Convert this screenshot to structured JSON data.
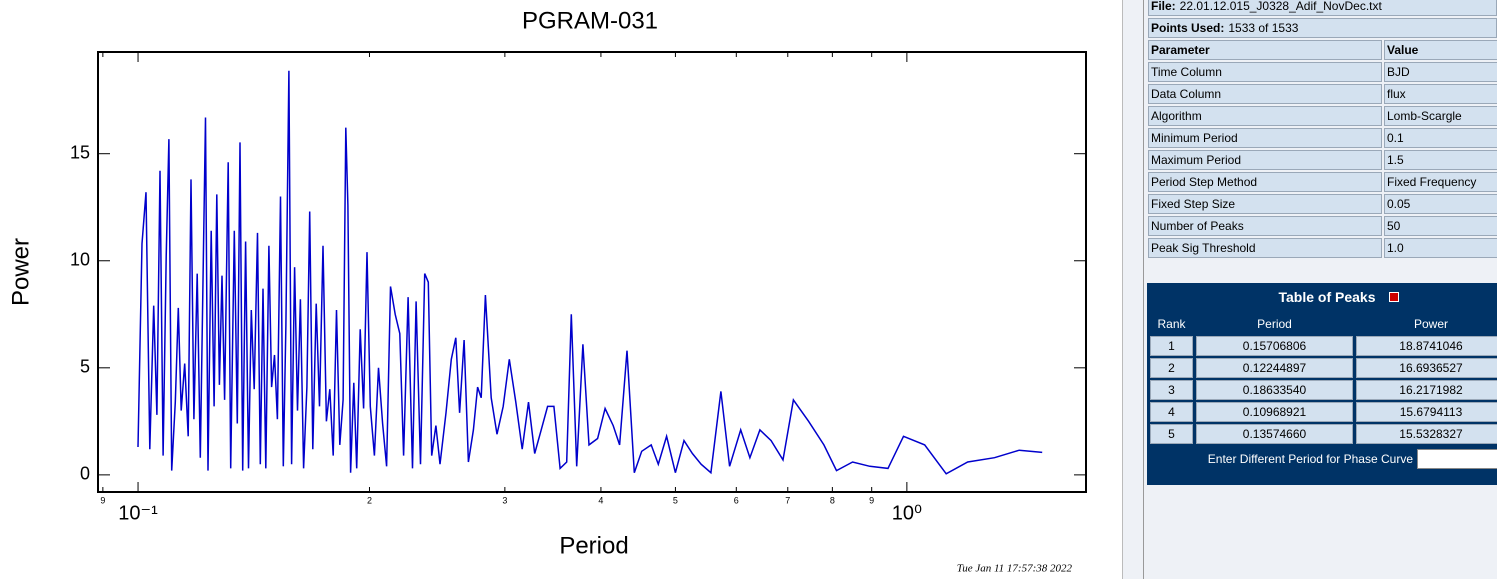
{
  "chart_data": {
    "type": "line",
    "title": "PGRAM-031",
    "xlabel": "Period",
    "ylabel": "Power",
    "xscale": "log",
    "color": "#0000cc",
    "xlim": [
      0.0887,
      1.71
    ],
    "ylim": [
      -0.8,
      19.75
    ],
    "xticks": [
      {
        "value": 0.09,
        "label": "9"
      },
      {
        "value": 0.1,
        "label": "10⁻¹"
      },
      {
        "value": 0.2,
        "label": "2"
      },
      {
        "value": 0.3,
        "label": "3"
      },
      {
        "value": 0.4,
        "label": "4"
      },
      {
        "value": 0.5,
        "label": "5"
      },
      {
        "value": 0.6,
        "label": "6"
      },
      {
        "value": 0.7,
        "label": "7"
      },
      {
        "value": 0.8,
        "label": "8"
      },
      {
        "value": 0.9,
        "label": "9"
      },
      {
        "value": 1,
        "label": "10⁰"
      }
    ],
    "yticks": [
      0,
      5,
      10,
      15
    ],
    "x": [
      0.1,
      0.1012,
      0.1024,
      0.1036,
      0.1048,
      0.1058,
      0.1068,
      0.1078,
      0.1088,
      0.1097,
      0.1106,
      0.1118,
      0.1128,
      0.1138,
      0.115,
      0.1162,
      0.1172,
      0.1182,
      0.1194,
      0.1205,
      0.1224,
      0.1233,
      0.1245,
      0.1256,
      0.1266,
      0.1276,
      0.1286,
      0.1296,
      0.131,
      0.132,
      0.1334,
      0.1346,
      0.1357,
      0.1368,
      0.138,
      0.1392,
      0.1404,
      0.1416,
      0.143,
      0.1442,
      0.1454,
      0.1466,
      0.148,
      0.1492,
      0.1505,
      0.1518,
      0.1532,
      0.1545,
      0.1557,
      0.1571,
      0.1584,
      0.1598,
      0.1612,
      0.1626,
      0.1642,
      0.1658,
      0.1672,
      0.1688,
      0.1705,
      0.1722,
      0.174,
      0.1758,
      0.1776,
      0.1794,
      0.1812,
      0.183,
      0.1848,
      0.1863,
      0.1875,
      0.189,
      0.1908,
      0.1925,
      0.1945,
      0.1965,
      0.1985,
      0.2005,
      0.203,
      0.2055,
      0.208,
      0.2105,
      0.213,
      0.216,
      0.219,
      0.2215,
      0.2245,
      0.2275,
      0.23,
      0.233,
      0.236,
      0.2385,
      0.241,
      0.244,
      0.247,
      0.2515,
      0.2555,
      0.259,
      0.262,
      0.2655,
      0.269,
      0.273,
      0.2765,
      0.2795,
      0.283,
      0.288,
      0.293,
      0.2985,
      0.304,
      0.31,
      0.316,
      0.322,
      0.328,
      0.3345,
      0.341,
      0.3475,
      0.354,
      0.361,
      0.366,
      0.372,
      0.379,
      0.386,
      0.396,
      0.405,
      0.415,
      0.423,
      0.4325,
      0.442,
      0.452,
      0.465,
      0.475,
      0.487,
      0.5,
      0.513,
      0.526,
      0.54,
      0.556,
      0.573,
      0.588,
      0.608,
      0.625,
      0.644,
      0.666,
      0.69,
      0.712,
      0.745,
      0.78,
      0.81,
      0.85,
      0.895,
      0.945,
      0.99,
      1.055,
      1.125,
      1.2,
      1.3,
      1.4,
      1.5
    ],
    "values": [
      1.3,
      10.8,
      13.2,
      1.2,
      7.9,
      2.8,
      14.2,
      0.9,
      10.2,
      15.68,
      0.2,
      3.4,
      7.8,
      3.0,
      5.2,
      1.8,
      13.8,
      2.6,
      9.4,
      0.8,
      16.69,
      0.2,
      11.4,
      3.2,
      13.1,
      4.2,
      9.3,
      3.5,
      14.6,
      0.3,
      11.4,
      2.4,
      15.53,
      0.2,
      10.9,
      0.3,
      7.7,
      4.0,
      11.3,
      0.5,
      8.7,
      0.3,
      10.7,
      4.1,
      5.6,
      2.6,
      13.0,
      0.4,
      7.0,
      18.87,
      0.5,
      9.7,
      3.0,
      8.2,
      0.3,
      4.1,
      12.3,
      1.2,
      8.0,
      3.2,
      10.7,
      2.5,
      4.0,
      0.9,
      7.7,
      1.4,
      3.5,
      16.22,
      12.6,
      0.1,
      4.3,
      0.3,
      6.8,
      3.1,
      10.4,
      3.2,
      0.9,
      5.0,
      2.4,
      0.4,
      8.8,
      7.5,
      6.6,
      0.9,
      8.3,
      0.3,
      8.1,
      0.5,
      9.4,
      9.0,
      0.9,
      2.3,
      0.5,
      2.9,
      5.4,
      6.4,
      2.9,
      6.3,
      0.6,
      2.1,
      4.1,
      3.6,
      8.4,
      3.6,
      1.9,
      3.2,
      5.4,
      3.4,
      1.2,
      3.4,
      1.0,
      2.1,
      3.2,
      3.2,
      0.3,
      0.6,
      7.5,
      0.4,
      6.1,
      1.4,
      1.7,
      3.1,
      2.3,
      1.4,
      5.8,
      0.1,
      1.1,
      1.4,
      0.5,
      1.8,
      0.1,
      1.6,
      1.0,
      0.5,
      0.1,
      3.9,
      0.4,
      2.1,
      0.8,
      2.1,
      1.6,
      0.7,
      3.5,
      2.5,
      1.4,
      0.2,
      0.6,
      0.4,
      0.3,
      1.8,
      1.4,
      0.05,
      0.6,
      0.8,
      1.15,
      1.05
    ]
  },
  "timestamp": "Tue Jan 11 17:57:38 2022",
  "panel": {
    "file_label": "File:",
    "file": "22.01.12.015_J0328_Adif_NovDec.txt",
    "points_label": "Points Used:",
    "points": "1533 of 1533",
    "param_header": [
      "Parameter",
      "Value"
    ],
    "params": [
      [
        "Time Column",
        "BJD"
      ],
      [
        "Data Column",
        "flux"
      ],
      [
        "Algorithm",
        "Lomb-Scargle"
      ],
      [
        "Minimum Period",
        "0.1"
      ],
      [
        "Maximum Period",
        "1.5"
      ],
      [
        "Period Step Method",
        "Fixed Frequency"
      ],
      [
        "Fixed Step Size",
        "0.05"
      ],
      [
        "Number of Peaks",
        "50"
      ],
      [
        "Peak Sig Threshold",
        "1.0"
      ]
    ],
    "peaks_title": "Table of Peaks",
    "peaks_header": [
      "Rank",
      "Period",
      "Power"
    ],
    "peaks": [
      [
        "1",
        "0.15706806",
        "18.8741046"
      ],
      [
        "2",
        "0.12244897",
        "16.6936527"
      ],
      [
        "3",
        "0.18633540",
        "16.2171982"
      ],
      [
        "4",
        "0.10968921",
        "15.6794113"
      ],
      [
        "5",
        "0.13574660",
        "15.5328327"
      ]
    ],
    "phase_prompt": "Enter Different Period for Phase Curve"
  }
}
